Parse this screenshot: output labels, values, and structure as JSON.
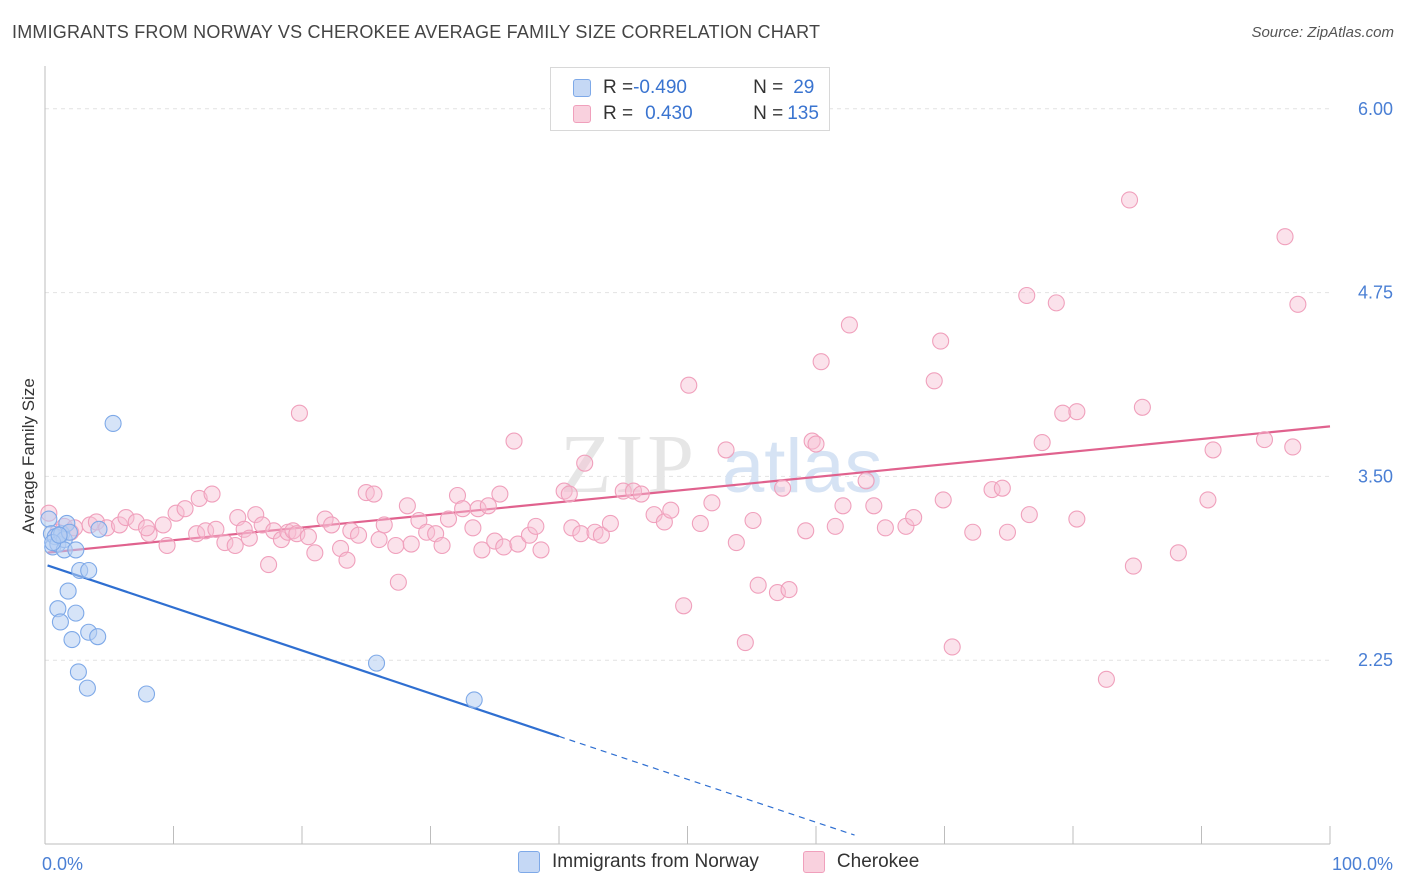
{
  "header": {
    "title": "IMMIGRANTS FROM NORWAY VS CHEROKEE AVERAGE FAMILY SIZE CORRELATION CHART",
    "source": "Source: ZipAtlas.com"
  },
  "watermark": {
    "zip": "ZIP",
    "atlas": "atlas"
  },
  "legend": {
    "rows": [
      {
        "r_label": "R = ",
        "r_value": "-0.490",
        "n_label": "N = ",
        "n_value": "29",
        "color": "#7ea9e8"
      },
      {
        "r_label": "R = ",
        "r_value": "0.430",
        "n_label": "N = ",
        "n_value": "135",
        "color": "#f0a0bc"
      }
    ]
  },
  "bottom_legend": [
    {
      "label": "Immigrants from Norway",
      "color": "#7ea9e8"
    },
    {
      "label": "Cherokee",
      "color": "#f0a0bc"
    }
  ],
  "chart_data": {
    "type": "scatter",
    "title": "IMMIGRANTS FROM NORWAY VS CHEROKEE AVERAGE FAMILY SIZE CORRELATION CHART",
    "xlabel": "",
    "ylabel": "Average Family Size",
    "xlim": [
      0,
      100
    ],
    "ylim": [
      1.0,
      6.25
    ],
    "x_tick_labels": [
      "0.0%",
      "100.0%"
    ],
    "y_ticks": [
      2.25,
      3.5,
      4.75,
      6.0
    ],
    "y_tick_labels": [
      "2.25",
      "3.50",
      "4.75",
      "6.00"
    ],
    "grid": true,
    "legend_position": "top-center",
    "series": [
      {
        "name": "Immigrants from Norway",
        "color": "#7ea9e8",
        "line_color": "#2f6fd1",
        "trend": {
          "x_solid": [
            0.2,
            40
          ],
          "x_dashed": [
            40,
            63
          ],
          "intercept": 2.9,
          "slope": -0.0292
        },
        "points": [
          [
            0.3,
            3.21
          ],
          [
            0.5,
            3.11
          ],
          [
            0.6,
            3.02
          ],
          [
            0.8,
            3.09
          ],
          [
            1.0,
            3.04
          ],
          [
            1.3,
            3.11
          ],
          [
            1.5,
            3.07
          ],
          [
            1.7,
            3.18
          ],
          [
            1.9,
            3.12
          ],
          [
            1.5,
            3.0
          ],
          [
            2.4,
            3.0
          ],
          [
            2.7,
            2.86
          ],
          [
            3.4,
            2.86
          ],
          [
            4.2,
            3.14
          ],
          [
            5.3,
            3.86
          ],
          [
            1.0,
            2.6
          ],
          [
            1.2,
            2.51
          ],
          [
            1.8,
            2.72
          ],
          [
            2.4,
            2.57
          ],
          [
            3.4,
            2.44
          ],
          [
            4.1,
            2.41
          ],
          [
            2.1,
            2.39
          ],
          [
            2.6,
            2.17
          ],
          [
            3.3,
            2.06
          ],
          [
            7.9,
            2.02
          ],
          [
            25.8,
            2.23
          ],
          [
            33.4,
            1.98
          ],
          [
            0.6,
            3.05
          ],
          [
            1.1,
            3.1
          ]
        ]
      },
      {
        "name": "Cherokee",
        "color": "#f0a0bc",
        "line_color": "#e0628e",
        "trend": {
          "x_solid": [
            0.2,
            100
          ],
          "intercept": 2.98,
          "slope": 0.0086
        },
        "points": [
          [
            0.3,
            3.25
          ],
          [
            1.0,
            3.12
          ],
          [
            1.5,
            3.16
          ],
          [
            2.0,
            3.12
          ],
          [
            2.3,
            3.15
          ],
          [
            3.5,
            3.17
          ],
          [
            4.0,
            3.19
          ],
          [
            4.8,
            3.15
          ],
          [
            5.8,
            3.17
          ],
          [
            6.3,
            3.22
          ],
          [
            7.1,
            3.19
          ],
          [
            8.1,
            3.11
          ],
          [
            7.9,
            3.15
          ],
          [
            9.2,
            3.17
          ],
          [
            9.5,
            3.03
          ],
          [
            10.2,
            3.25
          ],
          [
            10.9,
            3.28
          ],
          [
            11.8,
            3.11
          ],
          [
            12.0,
            3.35
          ],
          [
            12.5,
            3.13
          ],
          [
            13.0,
            3.38
          ],
          [
            13.3,
            3.14
          ],
          [
            14.0,
            3.05
          ],
          [
            14.8,
            3.03
          ],
          [
            15.0,
            3.22
          ],
          [
            15.5,
            3.14
          ],
          [
            15.9,
            3.08
          ],
          [
            16.4,
            3.24
          ],
          [
            16.9,
            3.17
          ],
          [
            17.4,
            2.9
          ],
          [
            17.8,
            3.13
          ],
          [
            18.4,
            3.07
          ],
          [
            18.9,
            3.12
          ],
          [
            19.3,
            3.13
          ],
          [
            19.6,
            3.11
          ],
          [
            19.8,
            3.93
          ],
          [
            20.5,
            3.09
          ],
          [
            21.0,
            2.98
          ],
          [
            21.8,
            3.21
          ],
          [
            22.3,
            3.17
          ],
          [
            23.0,
            3.01
          ],
          [
            23.5,
            2.93
          ],
          [
            23.8,
            3.13
          ],
          [
            24.4,
            3.1
          ],
          [
            25.0,
            3.39
          ],
          [
            25.6,
            3.38
          ],
          [
            26.0,
            3.07
          ],
          [
            26.4,
            3.17
          ],
          [
            27.3,
            3.03
          ],
          [
            27.5,
            2.78
          ],
          [
            28.2,
            3.3
          ],
          [
            28.5,
            3.04
          ],
          [
            29.1,
            3.2
          ],
          [
            29.7,
            3.12
          ],
          [
            30.4,
            3.11
          ],
          [
            30.9,
            3.03
          ],
          [
            31.4,
            3.21
          ],
          [
            32.1,
            3.37
          ],
          [
            32.5,
            3.28
          ],
          [
            33.3,
            3.15
          ],
          [
            33.7,
            3.28
          ],
          [
            34.0,
            3.0
          ],
          [
            35.0,
            3.06
          ],
          [
            34.5,
            3.3
          ],
          [
            35.4,
            3.38
          ],
          [
            35.7,
            3.02
          ],
          [
            36.5,
            3.74
          ],
          [
            36.8,
            3.04
          ],
          [
            37.7,
            3.1
          ],
          [
            38.2,
            3.16
          ],
          [
            38.6,
            3.0
          ],
          [
            40.4,
            3.4
          ],
          [
            40.8,
            3.38
          ],
          [
            41.0,
            3.15
          ],
          [
            41.7,
            3.11
          ],
          [
            42.0,
            3.59
          ],
          [
            42.8,
            3.12
          ],
          [
            43.3,
            3.1
          ],
          [
            44.0,
            3.18
          ],
          [
            45.0,
            3.4
          ],
          [
            45.8,
            3.4
          ],
          [
            46.4,
            3.38
          ],
          [
            47.4,
            3.24
          ],
          [
            48.2,
            3.19
          ],
          [
            48.7,
            3.27
          ],
          [
            49.7,
            2.62
          ],
          [
            50.1,
            4.12
          ],
          [
            51.0,
            3.18
          ],
          [
            51.9,
            3.32
          ],
          [
            53.0,
            3.68
          ],
          [
            53.8,
            3.05
          ],
          [
            54.5,
            2.37
          ],
          [
            55.1,
            3.2
          ],
          [
            55.5,
            2.76
          ],
          [
            57.0,
            2.71
          ],
          [
            57.4,
            3.42
          ],
          [
            57.9,
            2.73
          ],
          [
            59.2,
            3.13
          ],
          [
            59.7,
            3.74
          ],
          [
            60.0,
            3.72
          ],
          [
            60.4,
            4.28
          ],
          [
            61.5,
            3.16
          ],
          [
            62.1,
            3.3
          ],
          [
            62.6,
            4.53
          ],
          [
            63.9,
            3.47
          ],
          [
            64.5,
            3.3
          ],
          [
            65.4,
            3.15
          ],
          [
            67.0,
            3.16
          ],
          [
            67.6,
            3.22
          ],
          [
            69.2,
            4.15
          ],
          [
            69.7,
            4.42
          ],
          [
            69.9,
            3.34
          ],
          [
            70.6,
            2.34
          ],
          [
            72.2,
            3.12
          ],
          [
            73.7,
            3.41
          ],
          [
            74.5,
            3.42
          ],
          [
            74.9,
            3.12
          ],
          [
            76.4,
            4.73
          ],
          [
            76.6,
            3.24
          ],
          [
            77.6,
            3.73
          ],
          [
            78.7,
            4.68
          ],
          [
            79.2,
            3.93
          ],
          [
            80.3,
            3.94
          ],
          [
            80.3,
            3.21
          ],
          [
            82.6,
            2.12
          ],
          [
            84.4,
            5.38
          ],
          [
            84.7,
            2.89
          ],
          [
            85.4,
            3.97
          ],
          [
            88.2,
            2.98
          ],
          [
            90.5,
            3.34
          ],
          [
            90.9,
            3.68
          ],
          [
            94.9,
            3.75
          ],
          [
            97.1,
            3.7
          ],
          [
            96.5,
            5.13
          ],
          [
            97.5,
            4.67
          ]
        ]
      }
    ]
  }
}
